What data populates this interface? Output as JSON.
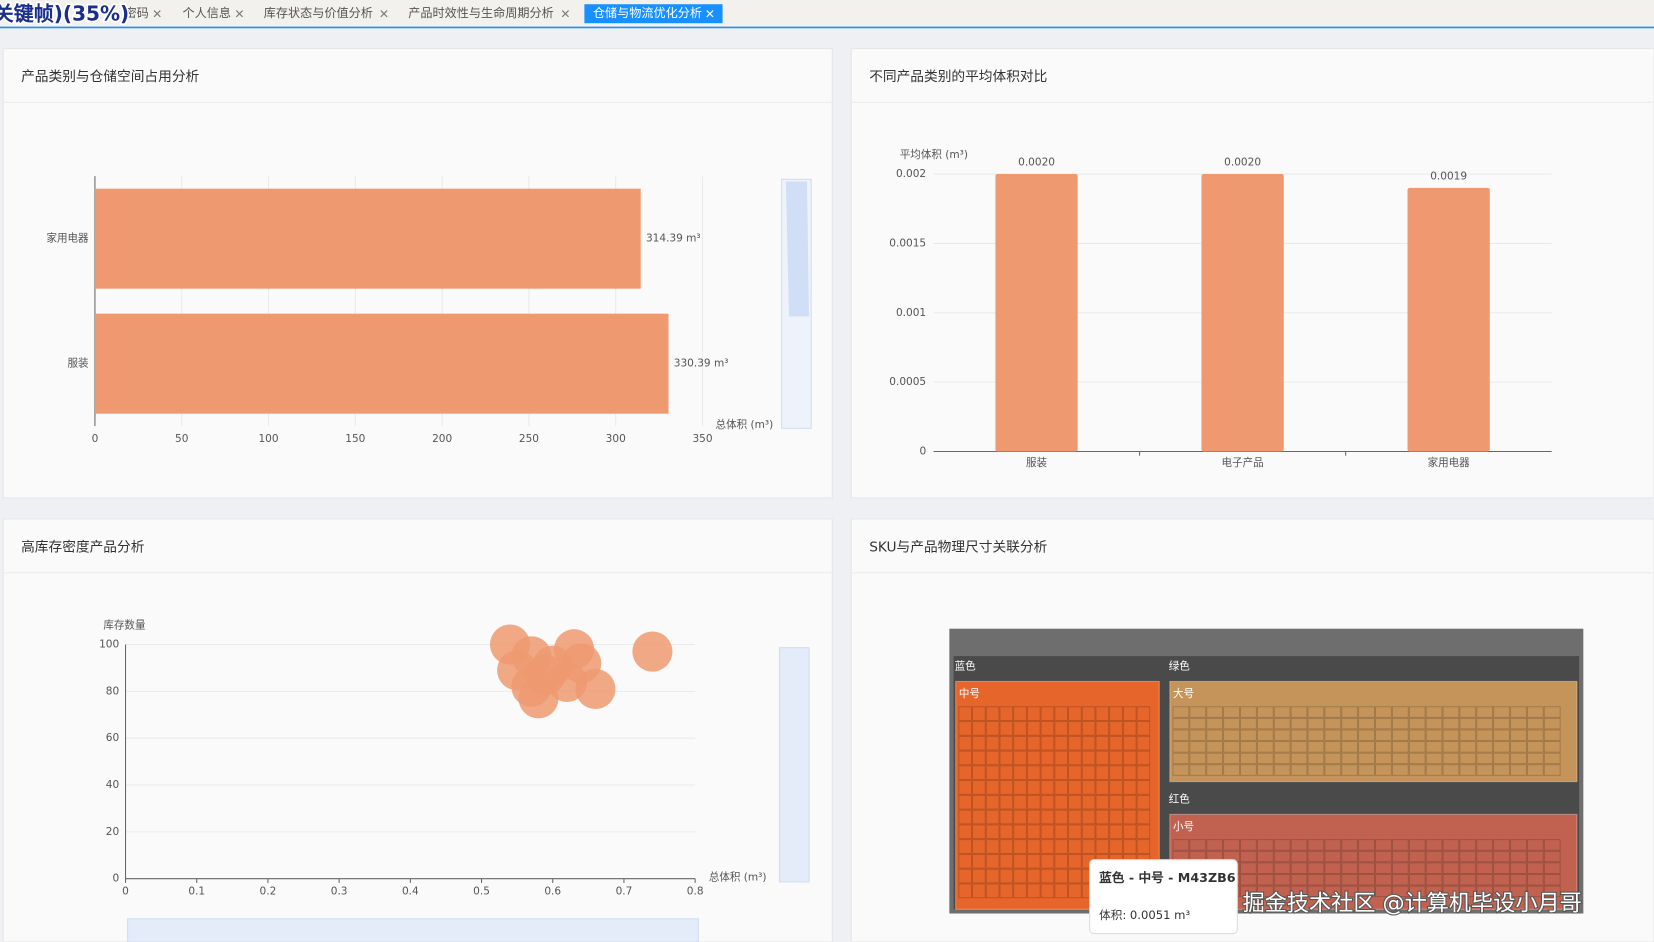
{
  "tabs": {
    "overlay": "关键帧)(35%)",
    "items": [
      "密码",
      "个人信息",
      "库存状态与价值分析",
      "产品时效性与生命周期分析",
      "仓储与物流优化分析"
    ]
  },
  "chart_data": [
    {
      "type": "hbar",
      "title": "产品类别与仓储空间占用分析",
      "categories": [
        "家用电器",
        "服装"
      ],
      "values": [
        314.39,
        330.39
      ],
      "value_labels": [
        "314.39 m³",
        "330.39 m³"
      ],
      "color": "#ee9970",
      "xlim": [
        0,
        350
      ],
      "xticks": [
        0,
        50,
        100,
        150,
        200,
        250,
        300,
        350
      ],
      "xlabel": "总体积 (m³)",
      "grid": true
    },
    {
      "type": "bar",
      "title": "不同产品类别的平均体积对比",
      "categories": [
        "服装",
        "电子产品",
        "家用电器"
      ],
      "values": [
        0.002,
        0.002,
        0.0019
      ],
      "value_labels": [
        "0.0020",
        "0.0020",
        "0.0019"
      ],
      "color": "#ee9970",
      "ylim": [
        0,
        0.002
      ],
      "yticks": [
        0,
        0.0005,
        0.001,
        0.0015,
        0.002
      ],
      "ylabel": "平均体积 (m³)",
      "grid": true
    },
    {
      "type": "scatter",
      "title": "高库存密度产品分析",
      "x": [
        0.54,
        0.57,
        0.55,
        0.6,
        0.63,
        0.64,
        0.57,
        0.58,
        0.62,
        0.66,
        0.74,
        0.59
      ],
      "values": [
        100,
        95,
        89,
        91,
        98,
        92,
        82,
        77,
        84,
        81,
        97,
        87
      ],
      "color": "#ee9970",
      "xlim": [
        0,
        0.8
      ],
      "xticks": [
        0,
        0.1,
        0.2,
        0.3,
        0.4,
        0.5,
        0.6,
        0.7,
        0.8
      ],
      "ylim": [
        0,
        100
      ],
      "yticks": [
        0,
        20,
        40,
        60,
        80,
        100
      ],
      "xlabel": "总体积 (m³)",
      "ylabel": "库存数量",
      "grid": true
    },
    {
      "type": "treemap",
      "title": "SKU与产品物理尺寸关联分析",
      "groups": [
        {
          "name": "蓝色",
          "child": "中号",
          "color": "#e5652a"
        },
        {
          "name": "绿色",
          "child": "大号",
          "color": "#c4945a"
        },
        {
          "name": "红色",
          "child": "小号",
          "color": "#c0624f"
        }
      ],
      "tooltip": {
        "title": "蓝色 - 中号 - M43ZB6",
        "text": "体积: 0.0051 m³"
      }
    }
  ],
  "watermark": "掘金技术社区 @计算机毕设小月哥"
}
